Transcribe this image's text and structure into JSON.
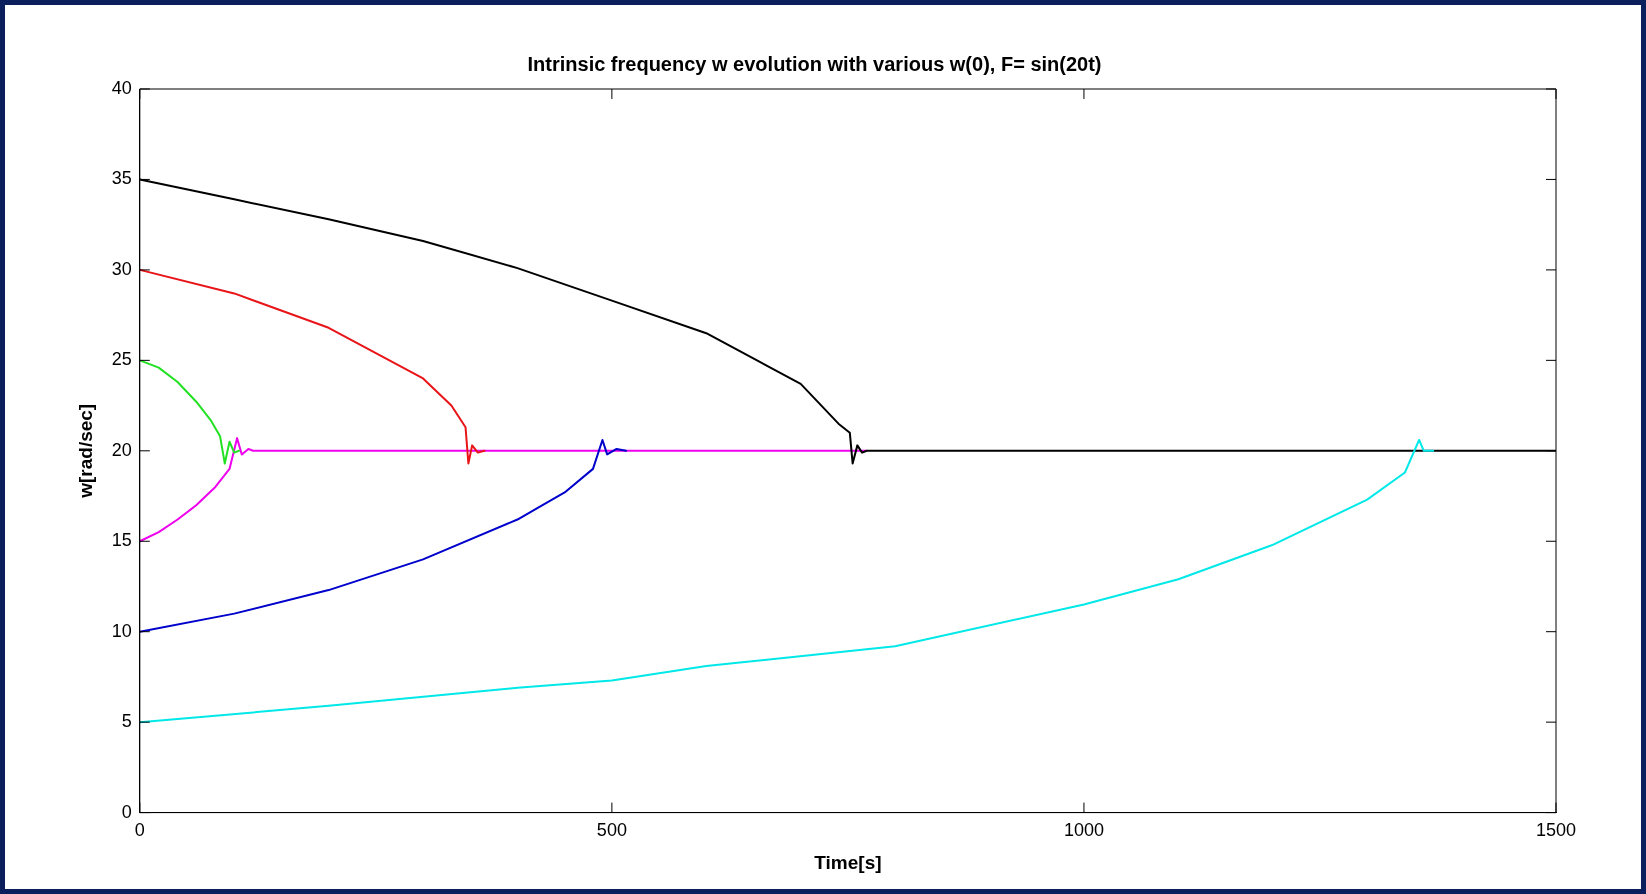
{
  "chart_data": {
    "type": "line",
    "title": "Intrinsic frequency w evolution with various w(0), F= sin(20t)",
    "xlabel": "Time[s]",
    "ylabel": "w[rad/sec]",
    "xlim": [
      0,
      1500
    ],
    "xticks": [
      0,
      500,
      1000,
      1500
    ],
    "ylim": [
      0,
      40
    ],
    "yticks": [
      0,
      5,
      10,
      15,
      20,
      25,
      30,
      35,
      40
    ],
    "grid": false,
    "legend": false,
    "marker": "none",
    "line_style": "solid",
    "series": [
      {
        "color": "#00e8e8",
        "x": [
          0,
          200,
          400,
          500,
          600,
          800,
          1000,
          1100,
          1200,
          1300,
          1340,
          1355,
          1360,
          1370
        ],
        "values": [
          5,
          5.9,
          6.9,
          7.3,
          8.1,
          9.2,
          11.5,
          12.9,
          14.8,
          17.3,
          18.8,
          20.6,
          20,
          20
        ]
      },
      {
        "color": "#0000cc",
        "x": [
          0,
          100,
          200,
          300,
          400,
          450,
          480,
          490,
          495,
          505,
          515
        ],
        "values": [
          10,
          11,
          12.3,
          14,
          16.2,
          17.7,
          19,
          20.6,
          19.8,
          20.1,
          20
        ]
      },
      {
        "color": "#e81418",
        "x": [
          0,
          100,
          200,
          300,
          330,
          345,
          348,
          352,
          358,
          365
        ],
        "values": [
          30,
          28.7,
          26.8,
          24,
          22.5,
          21.3,
          19.3,
          20.3,
          19.9,
          20
        ]
      },
      {
        "color": "#22e022",
        "x": [
          0,
          20,
          40,
          60,
          75,
          85,
          90,
          95,
          100,
          105
        ],
        "values": [
          25,
          24.6,
          23.8,
          22.7,
          21.7,
          20.8,
          19.3,
          20.5,
          19.9,
          20
        ]
      },
      {
        "color": "#000000",
        "x": [
          0,
          100,
          200,
          300,
          400,
          500,
          600,
          700,
          740,
          752,
          755,
          760,
          765,
          770,
          1500
        ],
        "values": [
          35,
          33.9,
          32.8,
          31.6,
          30.1,
          28.3,
          26.5,
          23.7,
          21.5,
          21,
          19.3,
          20.3,
          19.9,
          20,
          20
        ]
      },
      {
        "color": "#ee00ee",
        "x": [
          0,
          20,
          40,
          60,
          80,
          95,
          103,
          108,
          115,
          120,
          770
        ],
        "values": [
          15,
          15.5,
          16.2,
          17,
          18,
          19,
          20.7,
          19.8,
          20.1,
          20,
          20
        ]
      }
    ]
  }
}
